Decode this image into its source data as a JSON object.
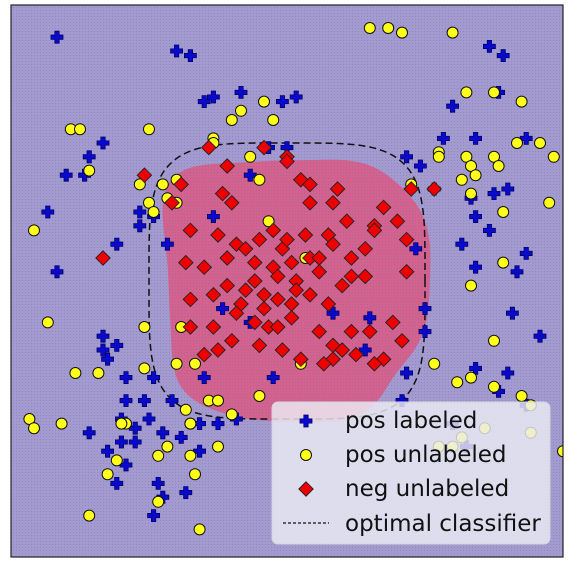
{
  "chart_data": {
    "type": "scatter",
    "title": "",
    "xlabel": "",
    "ylabel": "",
    "xlim": [
      -3,
      3
    ],
    "ylim": [
      -3,
      3
    ],
    "grid": false,
    "axis_ticks_visible": false,
    "legend_placement": "bottom-right",
    "background_region_color": "#a39bd0",
    "negative_region_color": "#d6608a",
    "series": [
      {
        "name": "pos labeled",
        "marker": "plus",
        "color": "#0a0acc",
        "points": [
          [
            -2.5,
            2.65
          ],
          [
            -1.2,
            2.5
          ],
          [
            -1.05,
            2.45
          ],
          [
            -0.5,
            2.05
          ],
          [
            -0.8,
            2.0
          ],
          [
            -0.9,
            1.95
          ],
          [
            -0.05,
            1.95
          ],
          [
            0.1,
            2.0
          ],
          [
            2.2,
            2.55
          ],
          [
            2.35,
            2.45
          ],
          [
            2.3,
            2.05
          ],
          [
            1.8,
            1.9
          ],
          [
            2.05,
            1.55
          ],
          [
            1.7,
            1.55
          ],
          [
            2.6,
            1.55
          ],
          [
            -2.0,
            1.5
          ],
          [
            -2.15,
            1.35
          ],
          [
            -2.2,
            1.15
          ],
          [
            -2.4,
            1.15
          ],
          [
            -0.2,
            1.45
          ],
          [
            0.0,
            1.45
          ],
          [
            -0.4,
            1.15
          ],
          [
            1.3,
            1.35
          ],
          [
            1.45,
            1.25
          ],
          [
            1.6,
            1.0
          ],
          [
            2.0,
            0.9
          ],
          [
            2.25,
            0.95
          ],
          [
            2.4,
            1.0
          ],
          [
            2.05,
            0.7
          ],
          [
            2.2,
            0.55
          ],
          [
            -2.6,
            0.75
          ],
          [
            -1.6,
            0.75
          ],
          [
            -1.45,
            0.7
          ],
          [
            -1.6,
            0.6
          ],
          [
            -1.3,
            0.4
          ],
          [
            -1.85,
            0.4
          ],
          [
            1.9,
            0.4
          ],
          [
            2.05,
            0.15
          ],
          [
            2.6,
            0.3
          ],
          [
            1.4,
            0.35
          ],
          [
            -0.8,
            0.7
          ],
          [
            2.5,
            0.1
          ],
          [
            -2.5,
            0.1
          ],
          [
            -0.7,
            -0.3
          ],
          [
            -0.4,
            -0.45
          ],
          [
            -2.0,
            -0.6
          ],
          [
            -1.85,
            -0.7
          ],
          [
            -2.0,
            -0.75
          ],
          [
            -1.95,
            -0.85
          ],
          [
            -1.75,
            -1.05
          ],
          [
            -1.45,
            -1.05
          ],
          [
            -0.9,
            -1.05
          ],
          [
            1.5,
            -0.3
          ],
          [
            1.5,
            -0.55
          ],
          [
            0.5,
            -0.35
          ],
          [
            0.9,
            -0.4
          ],
          [
            2.45,
            -0.35
          ],
          [
            2.75,
            -0.6
          ],
          [
            0.85,
            -0.75
          ],
          [
            2.05,
            -0.95
          ],
          [
            1.3,
            -1.0
          ],
          [
            2.4,
            -1.0
          ],
          [
            1.25,
            -1.3
          ],
          [
            2.6,
            -1.35
          ],
          [
            2.3,
            -1.2
          ],
          [
            -1.75,
            -1.3
          ],
          [
            -1.55,
            -1.3
          ],
          [
            -1.8,
            -1.5
          ],
          [
            -1.65,
            -1.6
          ],
          [
            -1.5,
            -1.5
          ],
          [
            -1.25,
            -1.3
          ],
          [
            -0.95,
            -1.55
          ],
          [
            -0.75,
            -1.55
          ],
          [
            -0.55,
            -1.5
          ],
          [
            -1.35,
            -1.65
          ],
          [
            -2.15,
            -1.65
          ],
          [
            -1.8,
            -1.75
          ],
          [
            -1.65,
            -1.75
          ],
          [
            -1.95,
            -1.85
          ],
          [
            -1.15,
            -1.7
          ],
          [
            -0.95,
            -1.85
          ],
          [
            -1.75,
            -2.0
          ],
          [
            -1.85,
            -2.2
          ],
          [
            -1.4,
            -2.2
          ],
          [
            -1.35,
            -2.35
          ],
          [
            -1.1,
            -2.3
          ],
          [
            -1.45,
            -2.55
          ],
          [
            -0.15,
            -1.05
          ],
          [
            1.8,
            -1.55
          ],
          [
            1.95,
            -1.8
          ]
        ]
      },
      {
        "name": "pos unlabeled",
        "marker": "circle",
        "color": "#ffff1a",
        "points": [
          [
            1.1,
            2.75
          ],
          [
            1.25,
            2.7
          ],
          [
            1.8,
            2.7
          ],
          [
            0.9,
            2.75
          ],
          [
            -0.25,
            1.95
          ],
          [
            -0.5,
            1.85
          ],
          [
            -0.15,
            1.75
          ],
          [
            -0.6,
            1.75
          ],
          [
            2.55,
            1.95
          ],
          [
            1.95,
            2.05
          ],
          [
            2.25,
            2.05
          ],
          [
            2.5,
            1.5
          ],
          [
            2.9,
            1.35
          ],
          [
            2.75,
            1.5
          ],
          [
            1.65,
            1.4
          ],
          [
            -2.35,
            1.65
          ],
          [
            -2.25,
            1.65
          ],
          [
            -1.5,
            1.65
          ],
          [
            -0.8,
            1.55
          ],
          [
            -0.8,
            1.5
          ],
          [
            -0.4,
            1.35
          ],
          [
            1.95,
            1.35
          ],
          [
            2.0,
            1.25
          ],
          [
            2.25,
            1.35
          ],
          [
            2.3,
            1.25
          ],
          [
            2.05,
            1.15
          ],
          [
            1.9,
            1.1
          ],
          [
            1.65,
            1.35
          ],
          [
            2.0,
            0.95
          ],
          [
            1.35,
            1.05
          ],
          [
            -2.15,
            1.2
          ],
          [
            -1.6,
            1.05
          ],
          [
            -1.3,
            0.9
          ],
          [
            -1.2,
            0.85
          ],
          [
            -1.5,
            0.85
          ],
          [
            -1.2,
            1.1
          ],
          [
            -1.35,
            1.05
          ],
          [
            -0.3,
            1.1
          ],
          [
            2.35,
            0.75
          ],
          [
            2.85,
            0.85
          ],
          [
            -2.75,
            0.55
          ],
          [
            -1.45,
            0.75
          ],
          [
            2.35,
            0.2
          ],
          [
            -0.2,
            0.65
          ],
          [
            0.2,
            0.25
          ],
          [
            2.0,
            -0.05
          ],
          [
            -2.6,
            -0.45
          ],
          [
            2.25,
            -0.65
          ],
          [
            -1.55,
            -0.5
          ],
          [
            -1.15,
            -0.5
          ],
          [
            -1.0,
            -0.9
          ],
          [
            -1.2,
            -0.9
          ],
          [
            -0.3,
            -1.25
          ],
          [
            0.15,
            -0.9
          ],
          [
            1.6,
            -0.9
          ],
          [
            1.85,
            -1.1
          ],
          [
            2.0,
            -1.05
          ],
          [
            2.65,
            -1.35
          ],
          [
            2.55,
            -1.25
          ],
          [
            2.25,
            -1.15
          ],
          [
            -2.3,
            -1.0
          ],
          [
            -2.05,
            -1.0
          ],
          [
            -1.55,
            -0.95
          ],
          [
            -1.75,
            -1.55
          ],
          [
            -1.8,
            -1.55
          ],
          [
            -1.05,
            -1.55
          ],
          [
            -1.1,
            -1.4
          ],
          [
            -0.85,
            -1.3
          ],
          [
            -0.75,
            -1.3
          ],
          [
            -0.6,
            -1.45
          ],
          [
            -1.3,
            -1.8
          ],
          [
            -0.75,
            -1.8
          ],
          [
            -1.05,
            -1.9
          ],
          [
            -1.4,
            -1.9
          ],
          [
            -1.0,
            -2.1
          ],
          [
            -2.8,
            -1.5
          ],
          [
            -2.75,
            -1.6
          ],
          [
            -2.45,
            -1.55
          ],
          [
            -1.85,
            -1.95
          ],
          [
            -1.95,
            -2.1
          ],
          [
            -1.4,
            -2.4
          ],
          [
            -2.15,
            -2.55
          ],
          [
            -0.95,
            -2.7
          ],
          [
            -1.05,
            -1.55
          ],
          [
            2.65,
            -1.65
          ],
          [
            2.15,
            -1.6
          ],
          [
            1.9,
            -1.7
          ],
          [
            3.0,
            -1.85
          ],
          [
            1.8,
            -1.8
          ],
          [
            1.65,
            -1.8
          ]
        ]
      },
      {
        "name": "neg unlabeled",
        "marker": "diamond",
        "color": "#ee0000",
        "points": [
          [
            -0.85,
            1.45
          ],
          [
            -0.65,
            1.25
          ],
          [
            -0.7,
            0.95
          ],
          [
            -0.6,
            0.85
          ],
          [
            -0.25,
            1.45
          ],
          [
            0.0,
            1.35
          ],
          [
            0.0,
            1.3
          ],
          [
            0.15,
            1.1
          ],
          [
            0.25,
            1.05
          ],
          [
            0.55,
            1.0
          ],
          [
            0.5,
            0.85
          ],
          [
            1.05,
            0.8
          ],
          [
            1.35,
            1.0
          ],
          [
            -0.3,
            0.45
          ],
          [
            -0.15,
            0.55
          ],
          [
            -1.25,
            0.85
          ],
          [
            -1.05,
            0.55
          ],
          [
            -0.75,
            0.5
          ],
          [
            -0.55,
            0.4
          ],
          [
            -0.45,
            0.35
          ],
          [
            -0.05,
            0.35
          ],
          [
            0.2,
            0.5
          ],
          [
            0.45,
            0.5
          ],
          [
            0.65,
            0.65
          ],
          [
            0.95,
            0.6
          ],
          [
            0.95,
            0.55
          ],
          [
            1.2,
            0.65
          ],
          [
            1.3,
            0.45
          ],
          [
            1.3,
            0.1
          ],
          [
            0.85,
            0.35
          ],
          [
            -1.1,
            0.2
          ],
          [
            -0.9,
            0.15
          ],
          [
            -0.65,
            0.25
          ],
          [
            -0.35,
            0.2
          ],
          [
            -0.15,
            0.15
          ],
          [
            0.05,
            0.2
          ],
          [
            0.25,
            0.25
          ],
          [
            0.35,
            0.25
          ],
          [
            0.5,
            0.4
          ],
          [
            0.7,
            0.25
          ],
          [
            0.85,
            0.05
          ],
          [
            0.35,
            0.1
          ],
          [
            -0.35,
            0.0
          ],
          [
            -0.1,
            0.05
          ],
          [
            0.1,
            0.0
          ],
          [
            -1.05,
            -0.2
          ],
          [
            -0.8,
            -0.15
          ],
          [
            -0.65,
            -0.05
          ],
          [
            -0.45,
            -0.1
          ],
          [
            -0.25,
            -0.15
          ],
          [
            -0.1,
            -0.2
          ],
          [
            0.05,
            -0.25
          ],
          [
            0.25,
            -0.15
          ],
          [
            0.45,
            -0.25
          ],
          [
            0.6,
            -0.05
          ],
          [
            0.7,
            0.05
          ],
          [
            0.1,
            -0.1
          ],
          [
            -0.5,
            -0.25
          ],
          [
            -2.0,
            0.25
          ],
          [
            1.6,
            1.0
          ],
          [
            -1.05,
            -0.5
          ],
          [
            -0.8,
            -0.5
          ],
          [
            -0.55,
            -0.35
          ],
          [
            -0.35,
            -0.45
          ],
          [
            -0.2,
            -0.5
          ],
          [
            0.05,
            -0.4
          ],
          [
            0.35,
            -0.55
          ],
          [
            0.5,
            -0.7
          ],
          [
            0.7,
            -0.55
          ],
          [
            0.9,
            -0.55
          ],
          [
            1.15,
            -0.45
          ],
          [
            1.25,
            -0.65
          ],
          [
            1.05,
            -0.85
          ],
          [
            0.75,
            -0.8
          ],
          [
            0.5,
            -0.85
          ],
          [
            -0.9,
            -0.8
          ],
          [
            -0.6,
            -0.65
          ],
          [
            -0.3,
            -0.7
          ],
          [
            -0.05,
            -0.75
          ],
          [
            0.15,
            -0.85
          ],
          [
            0.4,
            -0.9
          ],
          [
            0.6,
            -0.75
          ],
          [
            0.95,
            -0.9
          ],
          [
            -0.25,
            -0.3
          ],
          [
            -0.75,
            -0.75
          ],
          [
            -1.55,
            1.15
          ],
          [
            -1.15,
            1.05
          ],
          [
            0.25,
            0.85
          ],
          [
            0.0,
            0.45
          ],
          [
            -0.1,
            -0.5
          ]
        ]
      },
      {
        "name": "optimal classifier",
        "marker": "dashed line",
        "color": "#111111",
        "shape": "rounded square decision boundary",
        "center": [
          0,
          0
        ],
        "half_width": 1.5
      }
    ]
  }
}
